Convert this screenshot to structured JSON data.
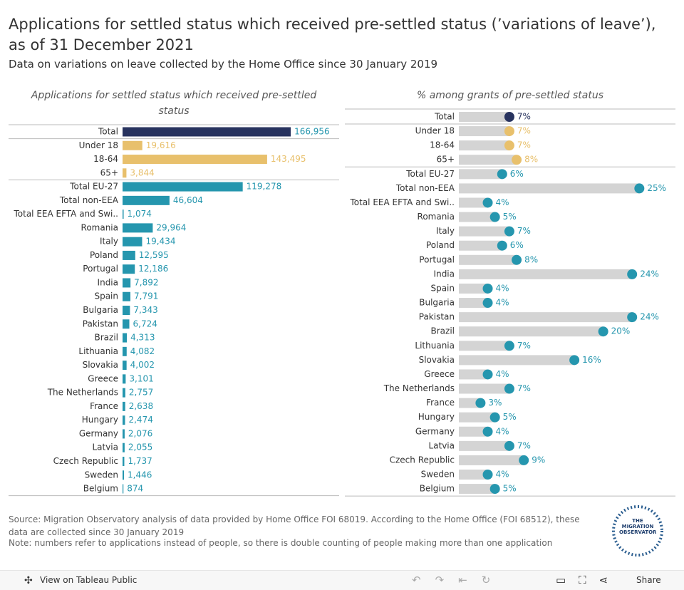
{
  "header": {
    "title": "Applications for settled status which received pre-settled status (’variations of leave’), as of 31 December 2021",
    "subtitle": "Data on variations on leave collected by the Home Office since 30 January 2019"
  },
  "chart_data": [
    {
      "type": "bar",
      "title": "Applications for settled status which received pre-settled status",
      "categories": [
        "Total",
        "Under 18",
        "18-64",
        "65+",
        "Total EU-27",
        "Total non-EEA",
        "Total EEA EFTA and Swi..",
        "Romania",
        "Italy",
        "Poland",
        "Portugal",
        "India",
        "Spain",
        "Bulgaria",
        "Pakistan",
        "Brazil",
        "Lithuania",
        "Slovakia",
        "Greece",
        "The Netherlands",
        "France",
        "Hungary",
        "Germany",
        "Latvia",
        "Czech Republic",
        "Sweden",
        "Belgium"
      ],
      "values": [
        166956,
        19616,
        143495,
        3844,
        119278,
        46604,
        1074,
        29964,
        19434,
        12595,
        12186,
        7892,
        7791,
        7343,
        6724,
        4313,
        4082,
        4002,
        3101,
        2757,
        2638,
        2474,
        2076,
        2055,
        1737,
        1446,
        874
      ],
      "value_labels": [
        "166,956",
        "19,616",
        "143,495",
        "3,844",
        "119,278",
        "46,604",
        "1,074",
        "29,964",
        "19,434",
        "12,595",
        "12,186",
        "7,892",
        "7,791",
        "7,343",
        "6,724",
        "4,313",
        "4,082",
        "4,002",
        "3,101",
        "2,757",
        "2,638",
        "2,474",
        "2,076",
        "2,055",
        "1,737",
        "1,446",
        "874"
      ],
      "colors": [
        "#28335f",
        "#e8c06c",
        "#e8c06c",
        "#e8c06c",
        "#2596ae",
        "#2596ae",
        "#2596ae",
        "#2596ae",
        "#2596ae",
        "#2596ae",
        "#2596ae",
        "#2596ae",
        "#2596ae",
        "#2596ae",
        "#2596ae",
        "#2596ae",
        "#2596ae",
        "#2596ae",
        "#2596ae",
        "#2596ae",
        "#2596ae",
        "#2596ae",
        "#2596ae",
        "#2596ae",
        "#2596ae",
        "#2596ae",
        "#2596ae"
      ],
      "xlim": [
        0,
        215000
      ]
    },
    {
      "type": "dot",
      "title": "% among grants of pre-settled status",
      "categories": [
        "Total",
        "Under 18",
        "18-64",
        "65+",
        "Total EU-27",
        "Total non-EEA",
        "Total EEA EFTA and Swi..",
        "Romania",
        "Italy",
        "Poland",
        "Portugal",
        "India",
        "Spain",
        "Bulgaria",
        "Pakistan",
        "Brazil",
        "Lithuania",
        "Slovakia",
        "Greece",
        "The Netherlands",
        "France",
        "Hungary",
        "Germany",
        "Latvia",
        "Czech Republic",
        "Sweden",
        "Belgium"
      ],
      "values": [
        7,
        7,
        7,
        8,
        6,
        25,
        4,
        5,
        7,
        6,
        8,
        24,
        4,
        4,
        24,
        20,
        7,
        16,
        4,
        7,
        3,
        5,
        4,
        7,
        9,
        4,
        5
      ],
      "value_labels": [
        "7%",
        "7%",
        "7%",
        "8%",
        "6%",
        "25%",
        "4%",
        "5%",
        "7%",
        "6%",
        "8%",
        "24%",
        "4%",
        "4%",
        "24%",
        "20%",
        "7%",
        "16%",
        "4%",
        "7%",
        "3%",
        "5%",
        "4%",
        "7%",
        "9%",
        "4%",
        "5%"
      ],
      "colors": [
        "#28335f",
        "#e8c06c",
        "#e8c06c",
        "#e8c06c",
        "#2596ae",
        "#2596ae",
        "#2596ae",
        "#2596ae",
        "#2596ae",
        "#2596ae",
        "#2596ae",
        "#2596ae",
        "#2596ae",
        "#2596ae",
        "#2596ae",
        "#2596ae",
        "#2596ae",
        "#2596ae",
        "#2596ae",
        "#2596ae",
        "#2596ae",
        "#2596ae",
        "#2596ae",
        "#2596ae",
        "#2596ae",
        "#2596ae",
        "#2596ae"
      ],
      "track_color": "#d4d4d4",
      "xlim": [
        0,
        30
      ]
    }
  ],
  "footer": {
    "source": "Source: Migration Observatory analysis of data provided by Home Office FOI 68019. According to the Home Office (FOI 68512), these data are collected since 30 January 2019",
    "note": "Note: numbers refer to applications instead of people, so there is double counting of people making more than one application",
    "logo": "THE MIGRATION OBSERVATORY"
  },
  "toolbar": {
    "view": "View on Tableau Public",
    "share": "Share"
  }
}
